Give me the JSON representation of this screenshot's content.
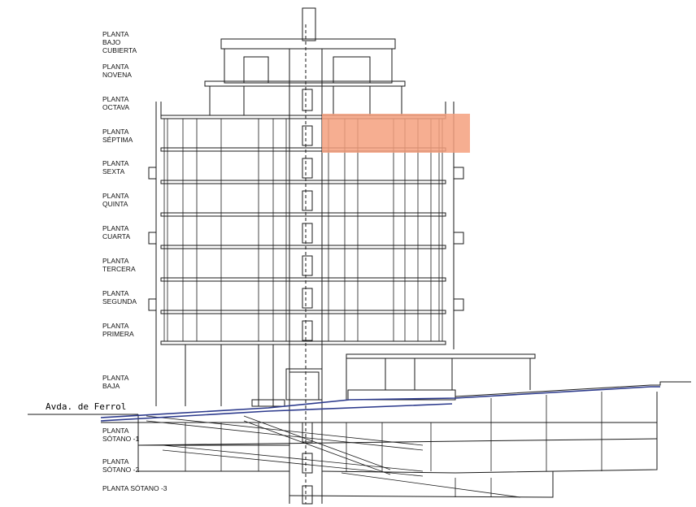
{
  "street_label": "Avda. de Ferrol",
  "floors": [
    {
      "id": "bajo-cubierta",
      "name": "PLANTA\nBAJO\nCUBIERTA"
    },
    {
      "id": "novena",
      "name": "PLANTA\nNOVENA"
    },
    {
      "id": "octava",
      "name": "PLANTA\nOCTAVA"
    },
    {
      "id": "septima",
      "name": "PLANTA\nSÉPTIMA"
    },
    {
      "id": "sexta",
      "name": "PLANTA\nSEXTA"
    },
    {
      "id": "quinta",
      "name": "PLANTA\nQUINTA"
    },
    {
      "id": "cuarta",
      "name": "PLANTA\nCUARTA"
    },
    {
      "id": "tercera",
      "name": "PLANTA\nTERCERA"
    },
    {
      "id": "segunda",
      "name": "PLANTA\nSEGUNDA"
    },
    {
      "id": "primera",
      "name": "PLANTA\nPRIMERA"
    },
    {
      "id": "baja",
      "name": "PLANTA\nBAJA"
    },
    {
      "id": "sotano-1",
      "name": "PLANTA\nSÓTANO -1"
    },
    {
      "id": "sotano-2",
      "name": "PLANTA\nSÓTANO -2"
    },
    {
      "id": "sotano-3",
      "name": "PLANTA SÓTANO -3"
    }
  ],
  "highlight": {
    "floor": "septima",
    "color": "#f4a07e"
  },
  "colors": {
    "line": "#1a1a1a",
    "road": "#2c3a8c"
  }
}
